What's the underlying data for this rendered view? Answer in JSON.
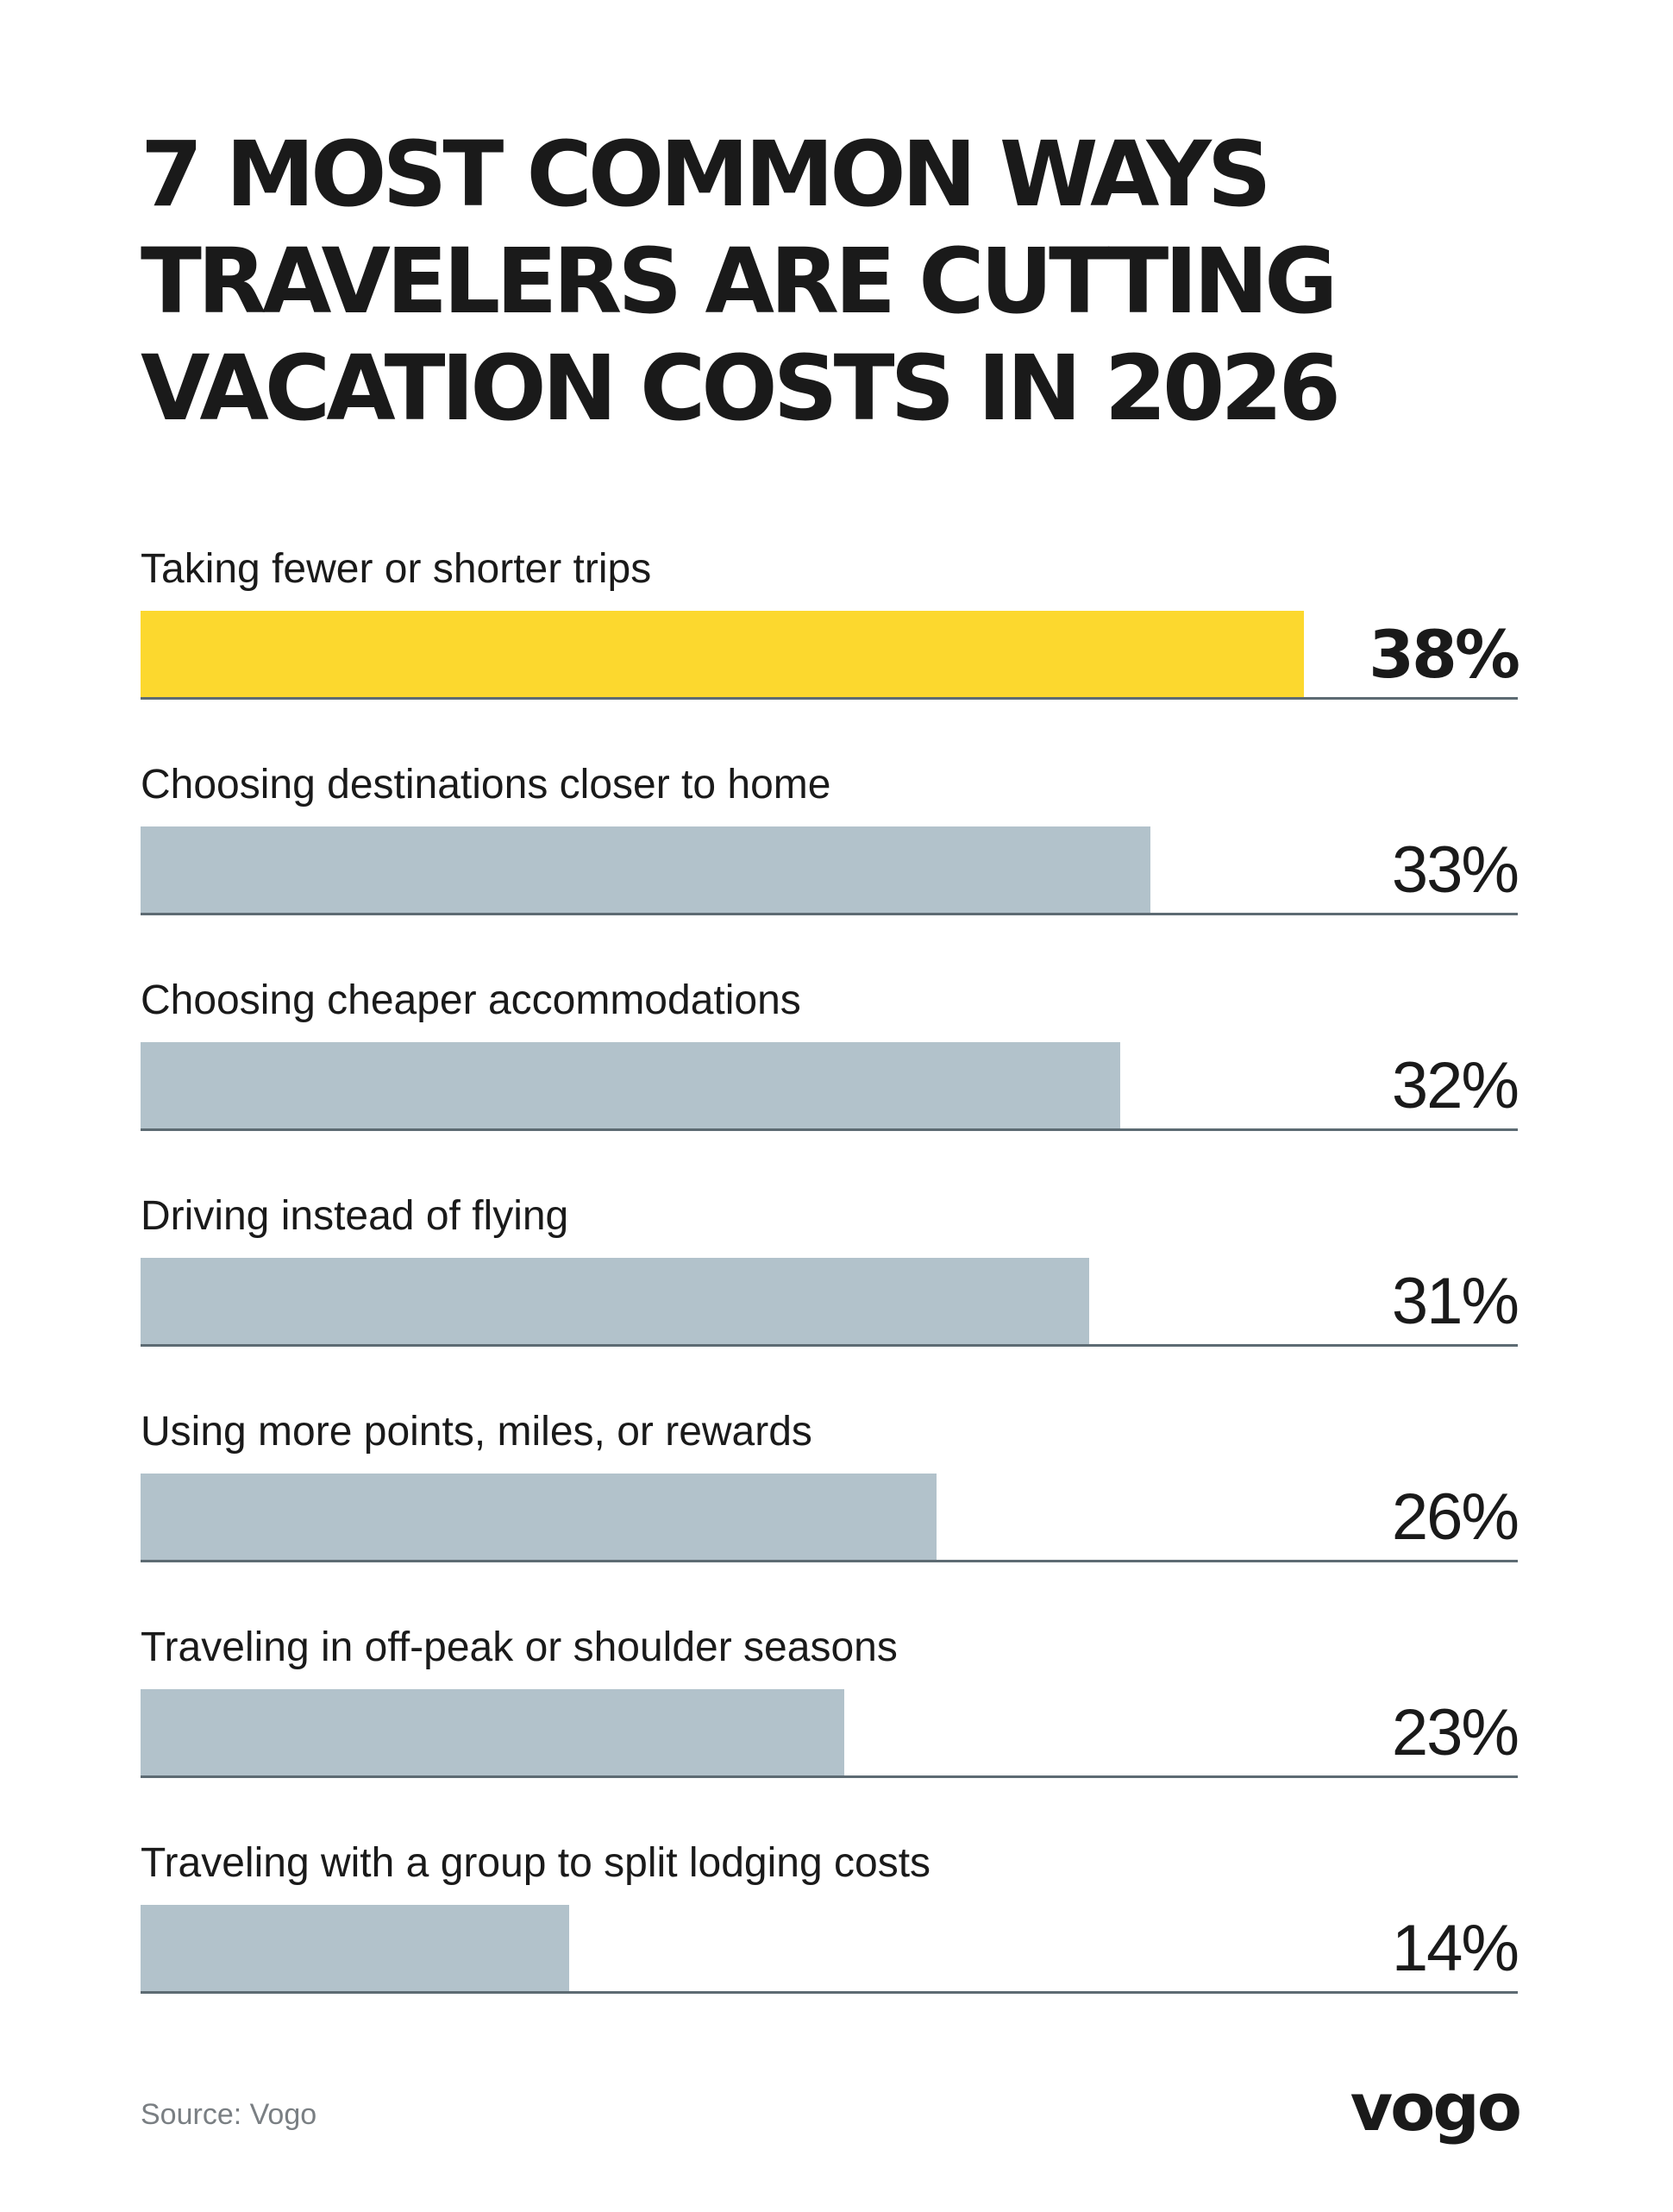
{
  "chart_data": {
    "type": "bar",
    "orientation": "horizontal",
    "title": "7 MOST COMMON WAYS TRAVELERS ARE CUTTING VACATION COSTS IN 2026",
    "title_lines": [
      "7 MOST COMMON WAYS",
      "TRAVELERS ARE CUTTING",
      "VACATION COSTS IN 2026"
    ],
    "categories": [
      "Taking fewer or shorter trips",
      "Choosing destinations closer to home",
      "Choosing cheaper accommodations",
      "Driving instead of flying",
      "Using more points, miles, or rewards",
      "Traveling in off-peak or shoulder seasons",
      "Traveling with a group to split lodging costs"
    ],
    "values": [
      38,
      33,
      32,
      31,
      26,
      23,
      14
    ],
    "value_labels": [
      "38%",
      "33%",
      "32%",
      "31%",
      "26%",
      "23%",
      "14%"
    ],
    "unit": "%",
    "highlight_index": 0,
    "highlight_color": "#fcd82e",
    "bar_color": "#b2c2cb",
    "baseline_color": "#5d6b73",
    "xlim": [
      0,
      45
    ],
    "grid": false,
    "legend": "none"
  },
  "footer": {
    "source": "Source: Vogo",
    "logo_text": "vogo"
  }
}
